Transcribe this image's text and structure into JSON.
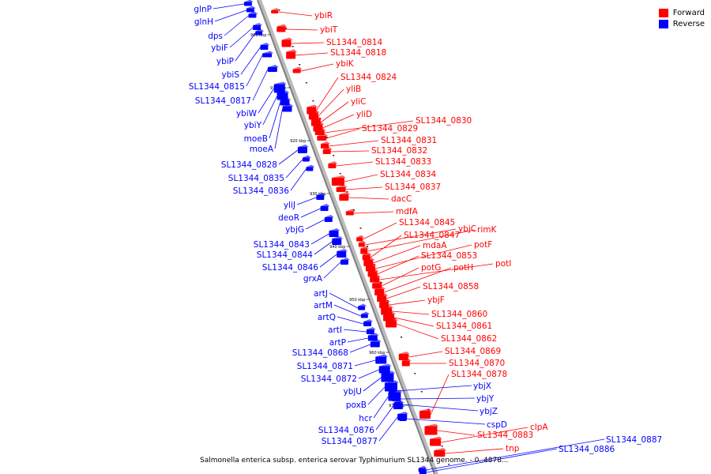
{
  "legend": {
    "forward": {
      "label": "Forward",
      "color": "#ff0000"
    },
    "reverse": {
      "label": "Reverse",
      "color": "#0000ff"
    }
  },
  "caption": "Salmonella enterica subsp. enterica serovar Typhimurium SL1344 genome. - 0..4878...",
  "ticks": [
    "900 kbp",
    "910 kbp",
    "920 kbp",
    "930 kbp",
    "940 kbp",
    "950 kbp",
    "960 kbp",
    "970 kbp"
  ],
  "forward_genes": [
    "ybiR",
    "ybiT",
    "SL1344_0814",
    "SL1344_0818",
    "ybiK",
    "SL1344_0824",
    "yliB",
    "yliC",
    "yliD",
    "SL1344_0830",
    "SL1344_0829",
    "SL1344_0831",
    "SL1344_0832",
    "SL1344_0833",
    "SL1344_0834",
    "SL1344_0837",
    "dacC",
    "mdfA",
    "SL1344_0845",
    "ybjC",
    "rimK",
    "SL1344_0847",
    "mdaA",
    "potF",
    "SL1344_0853",
    "potI",
    "potG",
    "potH",
    "SL1344_0858",
    "ybjF",
    "SL1344_0860",
    "SL1344_0861",
    "SL1344_0862",
    "SL1344_0869",
    "SL1344_0870",
    "SL1344_0878",
    "SL1344_0883",
    "clpA",
    "tnp"
  ],
  "reverse_genes": [
    "glnP",
    "glnH",
    "dps",
    "ybiF",
    "ybiP",
    "ybiS",
    "SL1344_0815",
    "SL1344_0817",
    "ybiW",
    "ybiY",
    "moeB",
    "moeA",
    "SL1344_0828",
    "SL1344_0835",
    "SL1344_0836",
    "yliJ",
    "deoR",
    "ybjG",
    "SL1344_0843",
    "SL1344_0844",
    "SL1344_0846",
    "grxA",
    "artJ",
    "artM",
    "artQ",
    "artI",
    "artP",
    "SL1344_0868",
    "SL1344_0871",
    "SL1344_0872",
    "ybjU",
    "poxB",
    "hcr",
    "SL1344_0876",
    "SL1344_0877",
    "ybjX",
    "ybjY",
    "ybjZ",
    "cspD",
    "SL1344_0887",
    "SL1344_0886"
  ]
}
